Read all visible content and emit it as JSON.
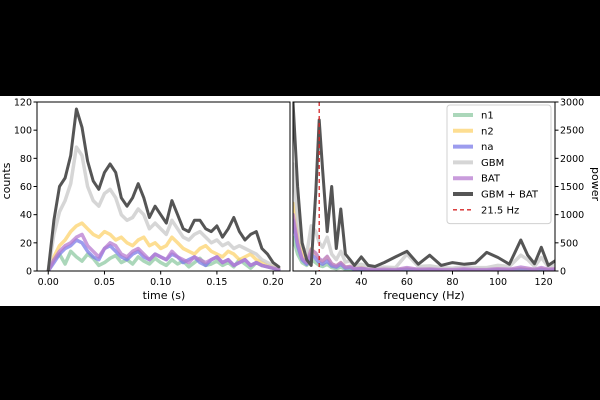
{
  "chart_data": [
    {
      "type": "line",
      "xlabel": "time (s)",
      "ylabel": "counts",
      "xlim": [
        -0.01,
        0.215
      ],
      "ylim": [
        0,
        120
      ],
      "xticks": [
        0.0,
        0.05,
        0.1,
        0.15,
        0.2
      ],
      "xtick_labels": [
        "0.00",
        "0.05",
        "0.10",
        "0.15",
        "0.20"
      ],
      "yticks": [
        0,
        20,
        40,
        60,
        80,
        100,
        120
      ],
      "ytick_labels": [
        "0",
        "20",
        "40",
        "60",
        "80",
        "100",
        "120"
      ],
      "grid": false,
      "x": [
        0.0,
        0.005,
        0.01,
        0.015,
        0.02,
        0.025,
        0.03,
        0.035,
        0.04,
        0.045,
        0.05,
        0.055,
        0.06,
        0.065,
        0.07,
        0.075,
        0.08,
        0.085,
        0.09,
        0.095,
        0.1,
        0.105,
        0.11,
        0.115,
        0.12,
        0.125,
        0.13,
        0.135,
        0.14,
        0.145,
        0.15,
        0.155,
        0.16,
        0.165,
        0.17,
        0.175,
        0.18,
        0.185,
        0.19,
        0.195,
        0.2,
        0.205
      ],
      "series": [
        {
          "name": "n1",
          "color": "#8fc9a3",
          "values": [
            0,
            8,
            12,
            5,
            14,
            10,
            7,
            12,
            9,
            4,
            6,
            9,
            11,
            6,
            8,
            5,
            10,
            7,
            5,
            9,
            6,
            4,
            8,
            5,
            7,
            3,
            6,
            9,
            4,
            5,
            7,
            4,
            6,
            3,
            8,
            5,
            2,
            6,
            4,
            3,
            2,
            1
          ]
        },
        {
          "name": "n2",
          "color": "#fcd36e",
          "values": [
            0,
            10,
            18,
            22,
            28,
            32,
            34,
            30,
            26,
            24,
            28,
            26,
            22,
            24,
            20,
            18,
            22,
            24,
            18,
            20,
            16,
            18,
            24,
            20,
            16,
            14,
            12,
            16,
            18,
            14,
            12,
            10,
            14,
            12,
            8,
            10,
            12,
            8,
            6,
            4,
            3,
            2
          ]
        },
        {
          "name": "na",
          "color": "#7b7be8",
          "values": [
            0,
            6,
            12,
            16,
            18,
            22,
            20,
            14,
            10,
            8,
            16,
            18,
            14,
            10,
            8,
            12,
            14,
            10,
            8,
            12,
            10,
            8,
            12,
            10,
            6,
            8,
            10,
            6,
            4,
            8,
            10,
            6,
            8,
            4,
            6,
            8,
            4,
            6,
            4,
            3,
            2,
            1
          ]
        },
        {
          "name": "GBM",
          "color": "#c8c8c8",
          "values": [
            0,
            26,
            42,
            50,
            62,
            88,
            82,
            60,
            50,
            46,
            55,
            58,
            52,
            40,
            36,
            38,
            44,
            40,
            30,
            34,
            30,
            26,
            36,
            30,
            24,
            22,
            26,
            28,
            24,
            20,
            22,
            18,
            20,
            16,
            18,
            16,
            14,
            12,
            8,
            6,
            4,
            2
          ]
        },
        {
          "name": "BAT",
          "color": "#b77bd0",
          "values": [
            0,
            8,
            14,
            18,
            20,
            24,
            26,
            18,
            14,
            10,
            16,
            20,
            18,
            12,
            10,
            14,
            16,
            12,
            8,
            12,
            10,
            8,
            14,
            10,
            8,
            6,
            10,
            8,
            6,
            8,
            10,
            6,
            8,
            4,
            6,
            8,
            4,
            6,
            4,
            3,
            2,
            1
          ]
        },
        {
          "name": "GBM + BAT",
          "color": "#555555",
          "values": [
            0,
            36,
            60,
            66,
            82,
            115,
            102,
            78,
            64,
            58,
            70,
            76,
            70,
            52,
            46,
            52,
            62,
            52,
            38,
            46,
            40,
            34,
            50,
            40,
            30,
            28,
            36,
            36,
            30,
            28,
            32,
            24,
            30,
            38,
            28,
            22,
            26,
            28,
            16,
            12,
            6,
            3
          ]
        }
      ]
    },
    {
      "type": "line",
      "xlabel": "frequency (Hz)",
      "ylabel": "power",
      "xlim": [
        10,
        125
      ],
      "ylim": [
        0,
        3000
      ],
      "y_axis_side": "right",
      "xticks": [
        20,
        40,
        60,
        80,
        100,
        120
      ],
      "xtick_labels": [
        "20",
        "40",
        "60",
        "80",
        "100",
        "120"
      ],
      "yticks": [
        0,
        500,
        1000,
        1500,
        2000,
        2500,
        3000
      ],
      "ytick_labels": [
        "0",
        "500",
        "1000",
        "1500",
        "2000",
        "2500",
        "3000"
      ],
      "grid": false,
      "x": [
        10,
        12,
        14,
        16,
        18,
        20,
        21.5,
        23,
        25,
        27,
        29,
        31,
        33,
        35,
        37,
        40,
        43,
        46,
        50,
        55,
        60,
        65,
        70,
        75,
        80,
        85,
        90,
        95,
        100,
        105,
        110,
        113,
        116,
        119,
        122,
        125
      ],
      "series": [
        {
          "name": "n1",
          "color": "#8fc9a3",
          "values": [
            600,
            300,
            150,
            100,
            200,
            150,
            100,
            80,
            120,
            60,
            40,
            70,
            30,
            40,
            20,
            30,
            20,
            10,
            20,
            10,
            30,
            10,
            20,
            10,
            10,
            20,
            10,
            10,
            20,
            10,
            30,
            20,
            10,
            30,
            10,
            20
          ]
        },
        {
          "name": "n2",
          "color": "#fcd36e",
          "values": [
            1200,
            600,
            300,
            150,
            400,
            300,
            200,
            160,
            250,
            120,
            90,
            150,
            70,
            80,
            40,
            60,
            30,
            20,
            30,
            20,
            40,
            20,
            30,
            20,
            20,
            30,
            20,
            20,
            30,
            20,
            40,
            30,
            20,
            40,
            20,
            30
          ]
        },
        {
          "name": "na",
          "color": "#7b7be8",
          "values": [
            900,
            450,
            200,
            120,
            300,
            220,
            150,
            120,
            180,
            90,
            70,
            120,
            50,
            60,
            30,
            40,
            20,
            15,
            20,
            15,
            30,
            15,
            20,
            15,
            15,
            20,
            15,
            15,
            20,
            15,
            30,
            20,
            15,
            30,
            15,
            20
          ]
        },
        {
          "name": "GBM",
          "color": "#c8c8c8",
          "values": [
            1900,
            900,
            450,
            300,
            800,
            700,
            500,
            420,
            600,
            300,
            200,
            350,
            160,
            180,
            90,
            120,
            70,
            60,
            70,
            60,
            300,
            80,
            90,
            60,
            50,
            80,
            60,
            60,
            100,
            80,
            280,
            200,
            80,
            240,
            80,
            100
          ]
        },
        {
          "name": "BAT",
          "color": "#b77bd0",
          "values": [
            1000,
            500,
            220,
            150,
            380,
            320,
            220,
            180,
            260,
            130,
            90,
            150,
            70,
            80,
            40,
            50,
            30,
            25,
            30,
            25,
            60,
            30,
            35,
            25,
            25,
            35,
            25,
            25,
            40,
            30,
            70,
            50,
            30,
            60,
            30,
            40
          ]
        },
        {
          "name": "GBM + BAT",
          "color": "#555555",
          "values": [
            3000,
            1500,
            500,
            200,
            100,
            1400,
            2680,
            1800,
            700,
            1500,
            400,
            1100,
            300,
            200,
            100,
            250,
            100,
            80,
            150,
            250,
            350,
            120,
            280,
            100,
            150,
            120,
            140,
            330,
            240,
            120,
            550,
            280,
            130,
            420,
            100,
            180
          ]
        }
      ],
      "vline": {
        "x": 21.5,
        "color": "#d62728",
        "label": "21.5 Hz"
      }
    }
  ],
  "legend": {
    "placement": "top-right",
    "items": [
      {
        "label": "n1",
        "color": "#8fc9a3",
        "style": "solid"
      },
      {
        "label": "n2",
        "color": "#fcd36e",
        "style": "solid"
      },
      {
        "label": "na",
        "color": "#7b7be8",
        "style": "solid"
      },
      {
        "label": "GBM",
        "color": "#c8c8c8",
        "style": "solid"
      },
      {
        "label": "BAT",
        "color": "#b77bd0",
        "style": "solid"
      },
      {
        "label": "GBM + BAT",
        "color": "#555555",
        "style": "solid"
      },
      {
        "label": "21.5 Hz",
        "color": "#d62728",
        "style": "dashed"
      }
    ]
  }
}
